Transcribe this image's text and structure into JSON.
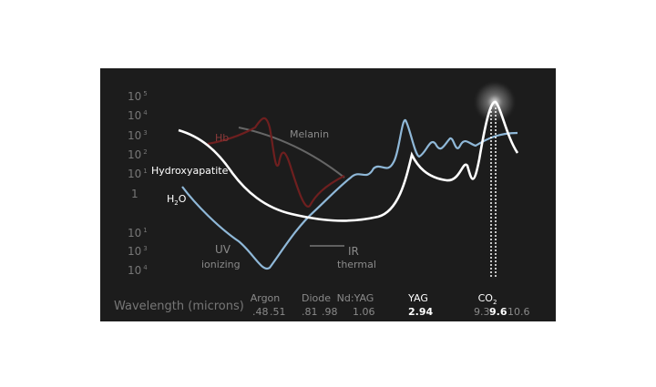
{
  "y_axis": {
    "labels": [
      {
        "base": "10",
        "exp": "5"
      },
      {
        "base": "10",
        "exp": "4"
      },
      {
        "base": "10",
        "exp": "3"
      },
      {
        "base": "10",
        "exp": "2"
      },
      {
        "base": "10",
        "exp": "1"
      },
      {
        "base": "1"
      },
      {
        "base": "10",
        "exp": "1"
      },
      {
        "base": "10",
        "exp": "3"
      },
      {
        "base": "10",
        "exp": "4"
      }
    ]
  },
  "curves": {
    "melanin": "Melanin",
    "hb": "Hb",
    "hydroxyapatite": "Hydroxyapatite",
    "water": {
      "a": "H",
      "sub": "2",
      "b": "O"
    }
  },
  "regions": {
    "uv": {
      "title": "UV",
      "sub": "ionizing"
    },
    "ir": {
      "title": "IR",
      "sub": "thermal"
    }
  },
  "x_axis": {
    "title": "Wavelength (microns)"
  },
  "lasers": [
    {
      "name": "Argon",
      "wavelengths": [
        ".48",
        ".51"
      ]
    },
    {
      "name": "Diode",
      "wavelengths": [
        ".81",
        ".98"
      ]
    },
    {
      "name": "Nd:YAG",
      "wavelengths": [
        "1.06"
      ]
    },
    {
      "name": "YAG",
      "wavelengths": [
        "2.94"
      ]
    },
    {
      "name": "CO",
      "sub": "2",
      "wavelengths": [
        "9.3",
        "9.6",
        "10.6"
      ]
    }
  ]
}
